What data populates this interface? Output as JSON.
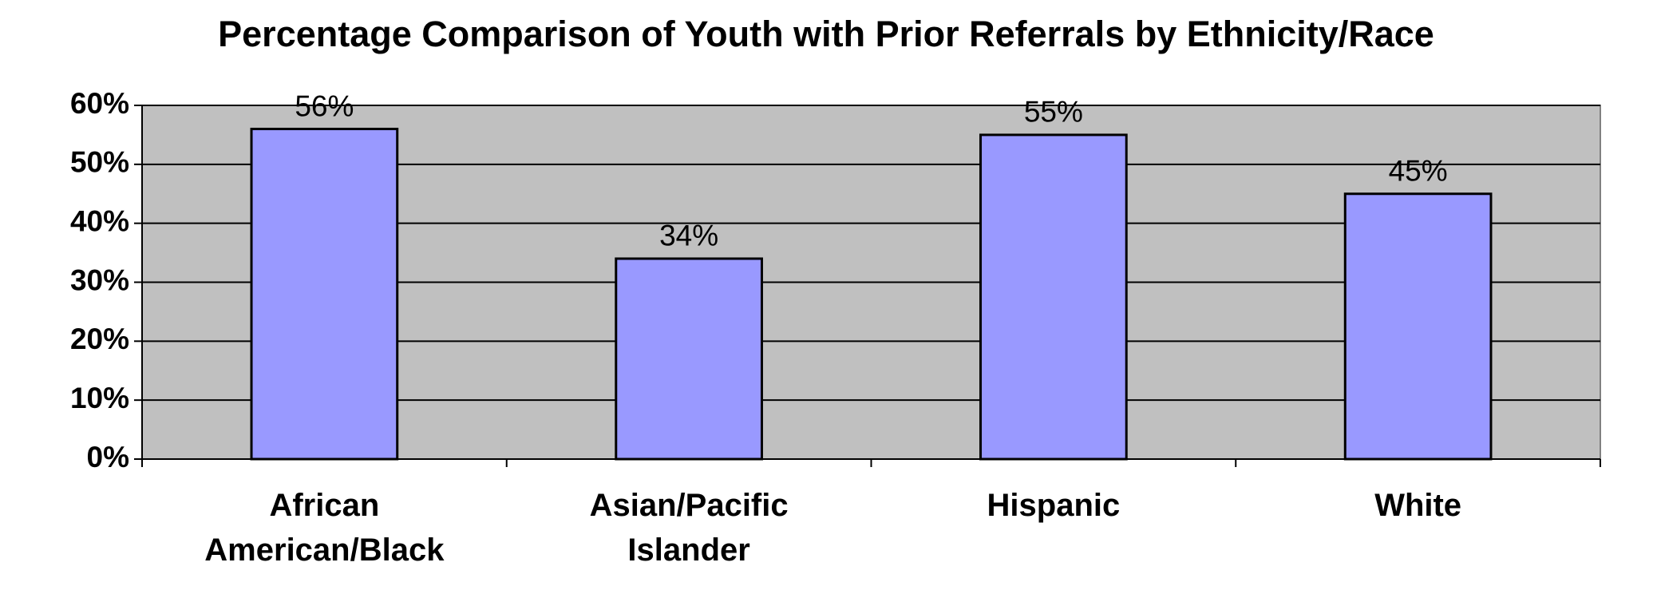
{
  "chart_data": {
    "type": "bar",
    "title": "Percentage Comparison of Youth with Prior Referrals by Ethnicity/Race",
    "categories": [
      "African American/Black",
      "Asian/Pacific Islander",
      "Hispanic",
      "White"
    ],
    "values": [
      56,
      34,
      55,
      45
    ],
    "value_labels": [
      "56%",
      "34%",
      "55%",
      "45%"
    ],
    "color": "#9999ff",
    "ylim": [
      0,
      60
    ],
    "yticks": [
      {
        "value": 0,
        "label": "0%"
      },
      {
        "value": 10,
        "label": "10%"
      },
      {
        "value": 20,
        "label": "20%"
      },
      {
        "value": 30,
        "label": "30%"
      },
      {
        "value": 40,
        "label": "40%"
      },
      {
        "value": 50,
        "label": "50%"
      },
      {
        "value": 60,
        "label": "60%"
      }
    ],
    "grid": true
  }
}
